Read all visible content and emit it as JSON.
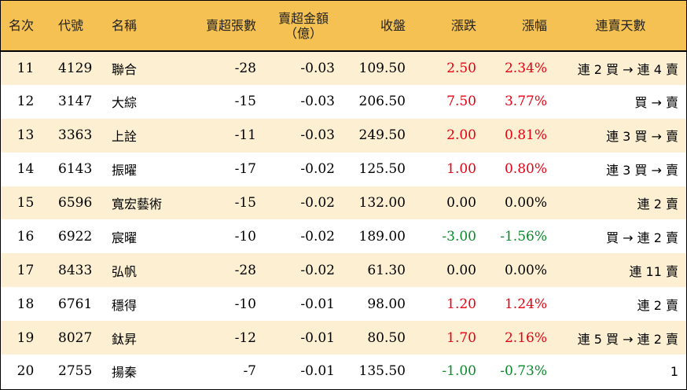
{
  "headers": {
    "rank": "名次",
    "code": "代號",
    "name": "名稱",
    "sell_lots": "賣超張數",
    "sell_amount": "賣超金額",
    "sell_amount_unit": "（億）",
    "close": "收盤",
    "change": "漲跌",
    "pct": "漲幅",
    "streak": "連賣天數"
  },
  "colors": {
    "header_bg": "#f4c152",
    "stripe_bg": "#fdf0d2",
    "up": "#e60012",
    "down": "#0a8a2a"
  },
  "rows": [
    {
      "rank": "11",
      "code": "4129",
      "name": "聯合",
      "sell_lots": "-28",
      "sell_amount": "-0.03",
      "close": "109.50",
      "change": "2.50",
      "pct": "2.34%",
      "dir": "up",
      "streak": "連 2 買 → 連 4 賣"
    },
    {
      "rank": "12",
      "code": "3147",
      "name": "大綜",
      "sell_lots": "-15",
      "sell_amount": "-0.03",
      "close": "206.50",
      "change": "7.50",
      "pct": "3.77%",
      "dir": "up",
      "streak": "買 → 賣"
    },
    {
      "rank": "13",
      "code": "3363",
      "name": "上詮",
      "sell_lots": "-11",
      "sell_amount": "-0.03",
      "close": "249.50",
      "change": "2.00",
      "pct": "0.81%",
      "dir": "up",
      "streak": "連 3 買 → 賣"
    },
    {
      "rank": "14",
      "code": "6143",
      "name": "振曜",
      "sell_lots": "-17",
      "sell_amount": "-0.02",
      "close": "125.50",
      "change": "1.00",
      "pct": "0.80%",
      "dir": "up",
      "streak": "連 3 買 → 賣"
    },
    {
      "rank": "15",
      "code": "6596",
      "name": "寬宏藝術",
      "sell_lots": "-15",
      "sell_amount": "-0.02",
      "close": "132.00",
      "change": "0.00",
      "pct": "0.00%",
      "dir": "flat",
      "streak": "連 2 賣"
    },
    {
      "rank": "16",
      "code": "6922",
      "name": "宸曜",
      "sell_lots": "-10",
      "sell_amount": "-0.02",
      "close": "189.00",
      "change": "-3.00",
      "pct": "-1.56%",
      "dir": "down",
      "streak": "買 → 連 2 賣"
    },
    {
      "rank": "17",
      "code": "8433",
      "name": "弘帆",
      "sell_lots": "-28",
      "sell_amount": "-0.02",
      "close": "61.30",
      "change": "0.00",
      "pct": "0.00%",
      "dir": "flat",
      "streak": "連 11 賣"
    },
    {
      "rank": "18",
      "code": "6761",
      "name": "穩得",
      "sell_lots": "-10",
      "sell_amount": "-0.01",
      "close": "98.00",
      "change": "1.20",
      "pct": "1.24%",
      "dir": "up",
      "streak": "連 2 賣"
    },
    {
      "rank": "19",
      "code": "8027",
      "name": "鈦昇",
      "sell_lots": "-12",
      "sell_amount": "-0.01",
      "close": "80.50",
      "change": "1.70",
      "pct": "2.16%",
      "dir": "up",
      "streak": "連 5 買 → 連 2 賣"
    },
    {
      "rank": "20",
      "code": "2755",
      "name": "揚秦",
      "sell_lots": "-7",
      "sell_amount": "-0.01",
      "close": "135.50",
      "change": "-1.00",
      "pct": "-0.73%",
      "dir": "down",
      "streak": "1"
    }
  ]
}
